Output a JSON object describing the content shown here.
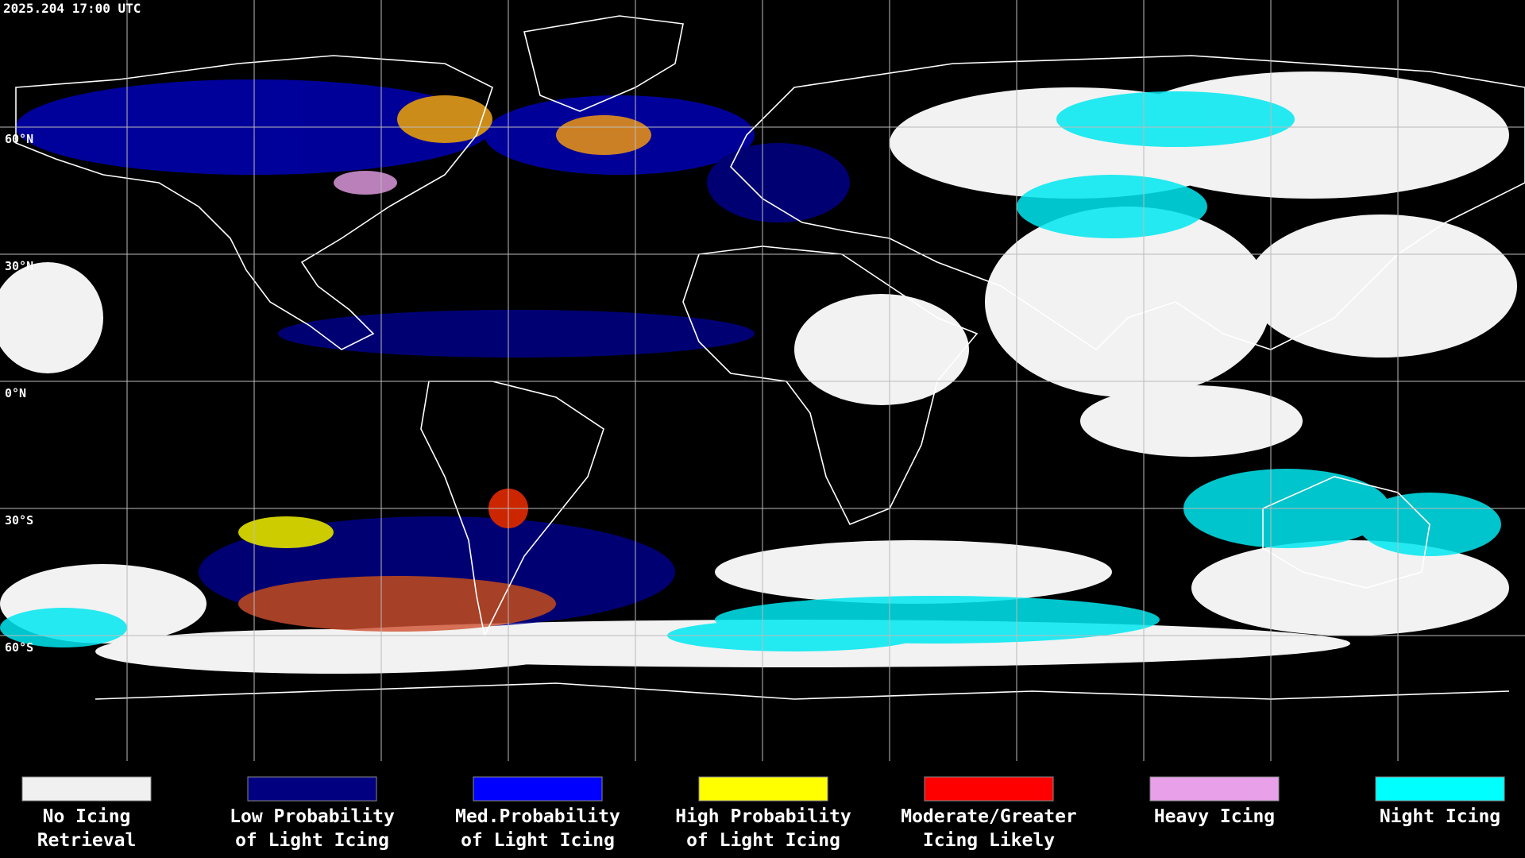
{
  "header": {
    "timestamp": "2025.204 17:00 UTC"
  },
  "map": {
    "latitude_labels": [
      "60°N",
      "30°N",
      "0°N",
      "30°S",
      "60°S"
    ]
  },
  "legend": {
    "items": [
      {
        "lines": [
          "No Icing",
          "Retrieval"
        ],
        "color": "#f0f0f0"
      },
      {
        "lines": [
          "Low Probability",
          "of Light Icing"
        ],
        "color": "#000080"
      },
      {
        "lines": [
          "Med.Probability",
          "of Light Icing"
        ],
        "color": "#0000ff"
      },
      {
        "lines": [
          "High Probability",
          "of Light Icing"
        ],
        "color": "#ffff00"
      },
      {
        "lines": [
          "Moderate/Greater",
          "Icing Likely"
        ],
        "color": "#ff0000"
      },
      {
        "lines": [
          "Heavy Icing"
        ],
        "color": "#e8a0e8"
      },
      {
        "lines": [
          "Night Icing"
        ],
        "color": "#00ffff"
      }
    ]
  }
}
